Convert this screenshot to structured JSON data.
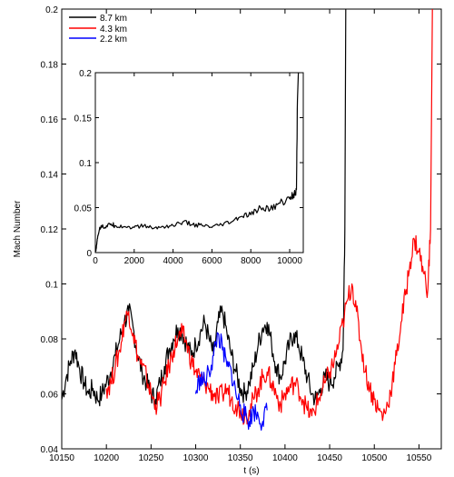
{
  "chart_data": [
    {
      "type": "line",
      "title": "",
      "xlabel": "t (s)",
      "ylabel": "Mach Number",
      "xlim": [
        10150,
        10575
      ],
      "ylim": [
        0.04,
        0.2
      ],
      "xticks": [
        "10150",
        "10200",
        "10250",
        "10300",
        "10350",
        "10400",
        "10450",
        "10500",
        "10550"
      ],
      "yticks": [
        "0.04",
        "0.06",
        "0.08",
        "0.1",
        "0.12",
        "0.14",
        "0.16",
        "0.18",
        "0.2"
      ],
      "legend_position": "top-left",
      "series": [
        {
          "name": "8.7 km",
          "color": "#000000",
          "x": [
            10150,
            10155,
            10160,
            10165,
            10170,
            10175,
            10180,
            10185,
            10190,
            10195,
            10200,
            10205,
            10210,
            10215,
            10220,
            10225,
            10230,
            10235,
            10240,
            10245,
            10250,
            10255,
            10260,
            10265,
            10270,
            10275,
            10280,
            10285,
            10290,
            10295,
            10300,
            10305,
            10310,
            10315,
            10320,
            10325,
            10330,
            10335,
            10340,
            10345,
            10350,
            10355,
            10360,
            10365,
            10370,
            10375,
            10380,
            10385,
            10390,
            10395,
            10400,
            10405,
            10410,
            10415,
            10420,
            10425,
            10430,
            10435,
            10440,
            10445,
            10450,
            10455,
            10460,
            10465,
            10467,
            10468
          ],
          "y": [
            0.058,
            0.066,
            0.072,
            0.076,
            0.069,
            0.064,
            0.06,
            0.062,
            0.058,
            0.06,
            0.064,
            0.068,
            0.074,
            0.08,
            0.086,
            0.09,
            0.084,
            0.074,
            0.068,
            0.064,
            0.06,
            0.058,
            0.064,
            0.07,
            0.076,
            0.08,
            0.084,
            0.082,
            0.078,
            0.074,
            0.078,
            0.082,
            0.086,
            0.08,
            0.074,
            0.086,
            0.09,
            0.082,
            0.074,
            0.068,
            0.062,
            0.06,
            0.064,
            0.07,
            0.078,
            0.084,
            0.086,
            0.078,
            0.07,
            0.066,
            0.072,
            0.078,
            0.082,
            0.078,
            0.072,
            0.066,
            0.06,
            0.058,
            0.062,
            0.066,
            0.064,
            0.066,
            0.07,
            0.076,
            0.12,
            0.2
          ]
        },
        {
          "name": "4.3 km",
          "color": "#ff0000",
          "x": [
            10200,
            10205,
            10210,
            10215,
            10220,
            10225,
            10230,
            10235,
            10240,
            10245,
            10250,
            10255,
            10260,
            10265,
            10270,
            10275,
            10280,
            10285,
            10290,
            10295,
            10300,
            10305,
            10310,
            10315,
            10320,
            10325,
            10330,
            10335,
            10340,
            10345,
            10350,
            10355,
            10360,
            10365,
            10370,
            10375,
            10380,
            10385,
            10390,
            10395,
            10400,
            10405,
            10410,
            10415,
            10420,
            10425,
            10430,
            10435,
            10440,
            10445,
            10450,
            10455,
            10460,
            10465,
            10470,
            10475,
            10480,
            10485,
            10490,
            10495,
            10500,
            10505,
            10510,
            10515,
            10520,
            10525,
            10530,
            10535,
            10540,
            10545,
            10550,
            10555,
            10560,
            10563,
            10565
          ],
          "y": [
            0.062,
            0.064,
            0.07,
            0.076,
            0.086,
            0.09,
            0.082,
            0.074,
            0.07,
            0.066,
            0.06,
            0.056,
            0.058,
            0.064,
            0.07,
            0.076,
            0.08,
            0.082,
            0.078,
            0.072,
            0.068,
            0.066,
            0.064,
            0.062,
            0.06,
            0.058,
            0.06,
            0.062,
            0.058,
            0.056,
            0.054,
            0.052,
            0.054,
            0.058,
            0.062,
            0.066,
            0.068,
            0.064,
            0.06,
            0.056,
            0.06,
            0.062,
            0.064,
            0.062,
            0.058,
            0.054,
            0.052,
            0.056,
            0.06,
            0.064,
            0.068,
            0.072,
            0.078,
            0.086,
            0.094,
            0.1,
            0.09,
            0.078,
            0.068,
            0.062,
            0.058,
            0.054,
            0.052,
            0.056,
            0.064,
            0.074,
            0.086,
            0.096,
            0.108,
            0.116,
            0.112,
            0.104,
            0.098,
            0.12,
            0.2
          ]
        },
        {
          "name": "2.2 km",
          "color": "#0000ff",
          "x": [
            10300,
            10305,
            10310,
            10315,
            10320,
            10325,
            10330,
            10335,
            10340,
            10345,
            10350,
            10355,
            10360,
            10365,
            10370,
            10375,
            10380
          ],
          "y": [
            0.06,
            0.066,
            0.064,
            0.068,
            0.074,
            0.082,
            0.076,
            0.07,
            0.068,
            0.06,
            0.056,
            0.052,
            0.05,
            0.054,
            0.052,
            0.05,
            0.054
          ]
        }
      ]
    },
    {
      "type": "line",
      "title": "",
      "xlabel": "",
      "ylabel": "",
      "xlim": [
        0,
        10700
      ],
      "ylim": [
        0,
        0.2
      ],
      "xticks": [
        "0",
        "2000",
        "4000",
        "6000",
        "8000",
        "10000"
      ],
      "yticks": [
        "0",
        "0.05",
        "0.1",
        "0.15",
        "0.2"
      ],
      "series": [
        {
          "name": "",
          "color": "#000000",
          "x": [
            0,
            50,
            100,
            200,
            300,
            500,
            800,
            1000,
            1500,
            2000,
            2500,
            3000,
            3500,
            4000,
            4500,
            5000,
            5500,
            6000,
            6500,
            7000,
            7500,
            8000,
            8500,
            9000,
            9500,
            10000,
            10200,
            10350,
            10400,
            10450
          ],
          "y": [
            0.0,
            0.005,
            0.015,
            0.025,
            0.03,
            0.028,
            0.032,
            0.03,
            0.029,
            0.028,
            0.03,
            0.027,
            0.029,
            0.03,
            0.034,
            0.031,
            0.03,
            0.028,
            0.031,
            0.034,
            0.04,
            0.042,
            0.05,
            0.048,
            0.055,
            0.06,
            0.065,
            0.07,
            0.17,
            0.2
          ]
        }
      ]
    }
  ]
}
